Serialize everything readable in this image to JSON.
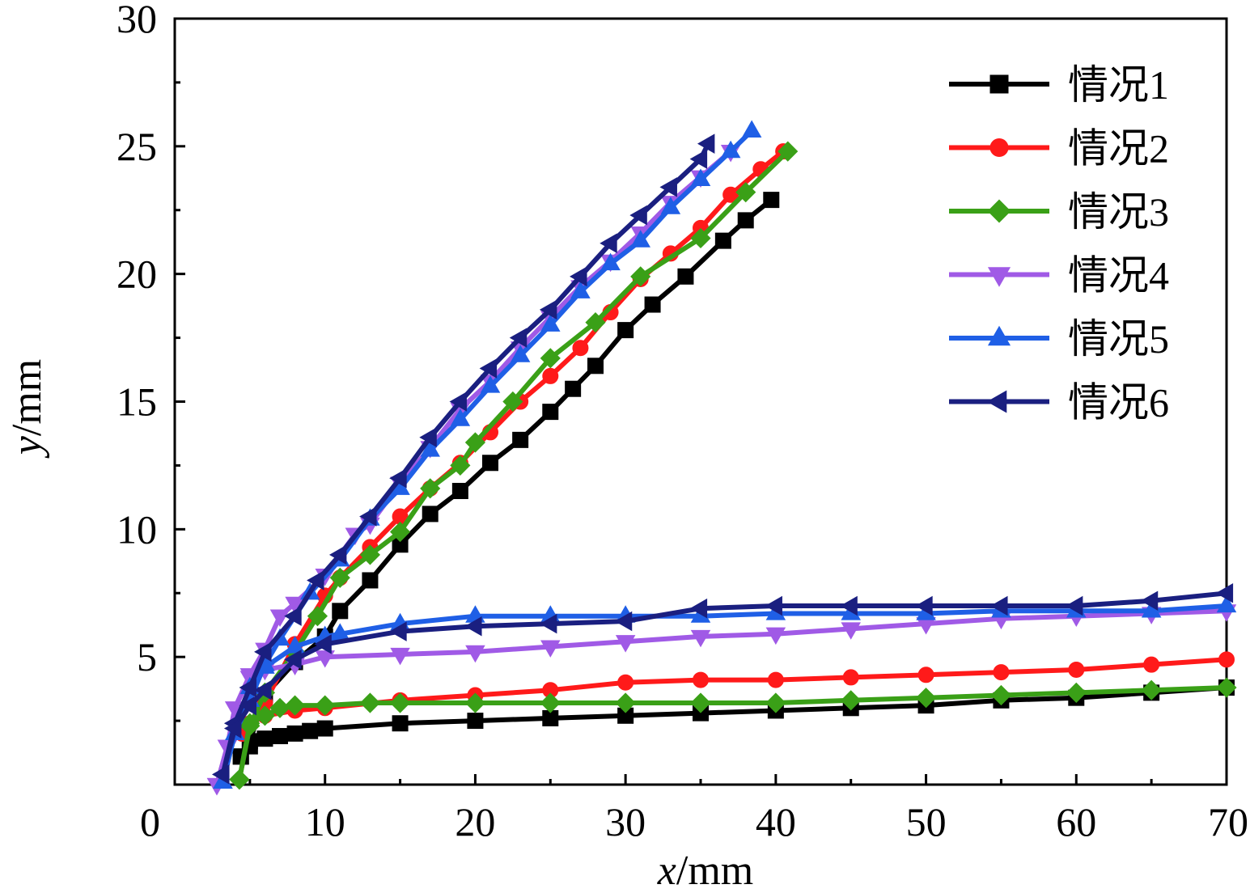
{
  "chart_data": {
    "type": "line",
    "title": "",
    "xlabel": {
      "var": "x",
      "unit": "/mm"
    },
    "ylabel": {
      "var": "y",
      "unit": "/mm"
    },
    "xlim": [
      0,
      70
    ],
    "ylim": [
      0,
      30
    ],
    "xticks": [
      0,
      10,
      20,
      30,
      40,
      50,
      60,
      70
    ],
    "yticks": [
      5,
      10,
      15,
      20,
      25,
      30
    ],
    "xtick_labels": [
      "0",
      "10",
      "20",
      "30",
      "40",
      "50",
      "60",
      "70"
    ],
    "ytick_labels": [
      "5",
      "10",
      "15",
      "20",
      "25",
      "30"
    ],
    "grid": false,
    "legend_position": "top-right",
    "series": [
      {
        "name": "情况1",
        "color": "#000000",
        "marker": "square",
        "upper": [
          [
            4.4,
            1.1
          ],
          [
            5,
            1.7
          ],
          [
            6,
            3.5
          ],
          [
            8,
            4.8
          ],
          [
            10,
            5.8
          ],
          [
            11,
            6.8
          ],
          [
            13,
            8.0
          ],
          [
            15,
            9.4
          ],
          [
            17,
            10.6
          ],
          [
            19,
            11.5
          ],
          [
            21,
            12.6
          ],
          [
            23,
            13.5
          ],
          [
            25,
            14.6
          ],
          [
            26.5,
            15.5
          ],
          [
            28,
            16.4
          ],
          [
            30,
            17.8
          ],
          [
            31.8,
            18.8
          ],
          [
            34,
            19.9
          ],
          [
            36.5,
            21.3
          ],
          [
            38,
            22.1
          ],
          [
            39.7,
            22.9
          ]
        ],
        "lower": [
          [
            4.4,
            1.1
          ],
          [
            5,
            1.5
          ],
          [
            6,
            1.8
          ],
          [
            7,
            1.9
          ],
          [
            8,
            2.0
          ],
          [
            9,
            2.1
          ],
          [
            10,
            2.2
          ],
          [
            15,
            2.4
          ],
          [
            20,
            2.5
          ],
          [
            25,
            2.6
          ],
          [
            30,
            2.7
          ],
          [
            35,
            2.8
          ],
          [
            40,
            2.9
          ],
          [
            45,
            3.0
          ],
          [
            50,
            3.1
          ],
          [
            55,
            3.3
          ],
          [
            60,
            3.4
          ],
          [
            65,
            3.6
          ],
          [
            70,
            3.8
          ]
        ]
      },
      {
        "name": "情况2",
        "color": "#ff1a1a",
        "marker": "circle",
        "upper": [
          [
            4.5,
            2.0
          ],
          [
            6,
            3.2
          ],
          [
            8,
            5.5
          ],
          [
            10,
            7.4
          ],
          [
            11,
            8.1
          ],
          [
            13,
            9.3
          ],
          [
            15,
            10.5
          ],
          [
            17,
            11.6
          ],
          [
            19,
            12.6
          ],
          [
            21,
            13.8
          ],
          [
            23,
            15.0
          ],
          [
            25,
            16.0
          ],
          [
            27,
            17.1
          ],
          [
            29,
            18.5
          ],
          [
            31,
            19.8
          ],
          [
            33,
            20.8
          ],
          [
            35,
            21.8
          ],
          [
            37,
            23.1
          ],
          [
            39,
            24.1
          ],
          [
            40.5,
            24.8
          ]
        ],
        "lower": [
          [
            4.5,
            2.0
          ],
          [
            5,
            2.4
          ],
          [
            6,
            2.7
          ],
          [
            8,
            2.9
          ],
          [
            10,
            3.0
          ],
          [
            15,
            3.3
          ],
          [
            20,
            3.5
          ],
          [
            25,
            3.7
          ],
          [
            30,
            4.0
          ],
          [
            35,
            4.1
          ],
          [
            40,
            4.1
          ],
          [
            45,
            4.2
          ],
          [
            50,
            4.3
          ],
          [
            55,
            4.4
          ],
          [
            60,
            4.5
          ],
          [
            65,
            4.7
          ],
          [
            70,
            4.9
          ]
        ]
      },
      {
        "name": "情况3",
        "color": "#3aa017",
        "marker": "diamond",
        "upper": [
          [
            4.3,
            0.2
          ],
          [
            5,
            2.3
          ],
          [
            6,
            3.6
          ],
          [
            8,
            5.2
          ],
          [
            9.5,
            6.6
          ],
          [
            11,
            8.1
          ],
          [
            13,
            9.0
          ],
          [
            15,
            9.9
          ],
          [
            17,
            11.6
          ],
          [
            19,
            12.5
          ],
          [
            20,
            13.4
          ],
          [
            22.5,
            15.0
          ],
          [
            25,
            16.7
          ],
          [
            28,
            18.1
          ],
          [
            31,
            19.9
          ],
          [
            35,
            21.4
          ],
          [
            38,
            23.2
          ],
          [
            40.8,
            24.8
          ]
        ],
        "lower": [
          [
            4.3,
            0.2
          ],
          [
            5,
            2.4
          ],
          [
            6,
            2.7
          ],
          [
            7,
            3.0
          ],
          [
            8,
            3.1
          ],
          [
            10,
            3.1
          ],
          [
            13,
            3.2
          ],
          [
            15,
            3.2
          ],
          [
            20,
            3.2
          ],
          [
            25,
            3.2
          ],
          [
            30,
            3.2
          ],
          [
            35,
            3.2
          ],
          [
            40,
            3.2
          ],
          [
            45,
            3.3
          ],
          [
            50,
            3.4
          ],
          [
            55,
            3.5
          ],
          [
            60,
            3.6
          ],
          [
            65,
            3.7
          ],
          [
            70,
            3.8
          ]
        ]
      },
      {
        "name": "情况4",
        "color": "#a05ae6",
        "marker": "triangle-down",
        "upper": [
          [
            2.8,
            0.0
          ],
          [
            3.5,
            1.5
          ],
          [
            4,
            3.0
          ],
          [
            5,
            4.3
          ],
          [
            6,
            5.3
          ],
          [
            7,
            6.6
          ],
          [
            8,
            7.1
          ],
          [
            10,
            8.2
          ],
          [
            12,
            9.8
          ],
          [
            13,
            10.2
          ],
          [
            15,
            11.8
          ],
          [
            17,
            13.2
          ],
          [
            19,
            14.7
          ],
          [
            21,
            15.8
          ],
          [
            23,
            17.1
          ],
          [
            25,
            18.3
          ],
          [
            27,
            19.5
          ],
          [
            29,
            20.5
          ],
          [
            31,
            21.6
          ],
          [
            33,
            22.8
          ],
          [
            35,
            23.8
          ],
          [
            37,
            24.8
          ]
        ],
        "lower": [
          [
            2.8,
            0.0
          ],
          [
            3.5,
            1.5
          ],
          [
            4,
            3.0
          ],
          [
            5,
            4.2
          ],
          [
            6,
            4.5
          ],
          [
            8,
            4.7
          ],
          [
            10,
            5.0
          ],
          [
            15,
            5.1
          ],
          [
            20,
            5.2
          ],
          [
            25,
            5.4
          ],
          [
            30,
            5.6
          ],
          [
            35,
            5.8
          ],
          [
            40,
            5.9
          ],
          [
            45,
            6.1
          ],
          [
            50,
            6.3
          ],
          [
            55,
            6.5
          ],
          [
            60,
            6.6
          ],
          [
            65,
            6.7
          ],
          [
            70,
            6.8
          ]
        ]
      },
      {
        "name": "情况5",
        "color": "#1f5fe6",
        "marker": "triangle-up",
        "upper": [
          [
            3.2,
            0.1
          ],
          [
            4,
            2.0
          ],
          [
            5,
            3.3
          ],
          [
            6,
            4.7
          ],
          [
            7,
            5.7
          ],
          [
            9,
            7.5
          ],
          [
            11,
            8.8
          ],
          [
            13,
            10.4
          ],
          [
            15,
            11.6
          ],
          [
            17,
            13.1
          ],
          [
            19,
            14.3
          ],
          [
            21,
            15.6
          ],
          [
            23,
            16.8
          ],
          [
            25,
            18.0
          ],
          [
            27,
            19.3
          ],
          [
            29,
            20.4
          ],
          [
            31,
            21.3
          ],
          [
            33,
            22.6
          ],
          [
            35,
            23.7
          ],
          [
            37,
            24.8
          ],
          [
            38.4,
            25.6
          ]
        ],
        "lower": [
          [
            3.2,
            0.1
          ],
          [
            4,
            2.0
          ],
          [
            5,
            3.8
          ],
          [
            6,
            4.6
          ],
          [
            8,
            5.4
          ],
          [
            10,
            5.8
          ],
          [
            11,
            5.9
          ],
          [
            15,
            6.3
          ],
          [
            20,
            6.6
          ],
          [
            25,
            6.6
          ],
          [
            30,
            6.6
          ],
          [
            35,
            6.6
          ],
          [
            40,
            6.7
          ],
          [
            45,
            6.7
          ],
          [
            50,
            6.7
          ],
          [
            55,
            6.8
          ],
          [
            60,
            6.8
          ],
          [
            65,
            6.8
          ],
          [
            70,
            7.0
          ]
        ]
      },
      {
        "name": "情况6",
        "color": "#1a1f80",
        "marker": "triangle-left",
        "upper": [
          [
            3.2,
            0.4
          ],
          [
            4,
            2.4
          ],
          [
            5,
            3.8
          ],
          [
            6,
            5.2
          ],
          [
            8,
            6.6
          ],
          [
            9.5,
            8.0
          ],
          [
            11,
            9.0
          ],
          [
            13,
            10.5
          ],
          [
            15,
            12.0
          ],
          [
            17,
            13.6
          ],
          [
            19,
            15.0
          ],
          [
            21,
            16.3
          ],
          [
            23,
            17.5
          ],
          [
            25,
            18.6
          ],
          [
            27,
            19.9
          ],
          [
            29,
            21.2
          ],
          [
            31,
            22.3
          ],
          [
            33,
            23.4
          ],
          [
            35,
            24.5
          ],
          [
            35.5,
            25.1
          ]
        ],
        "lower": [
          [
            3.2,
            0.4
          ],
          [
            4,
            2.2
          ],
          [
            5,
            3.1
          ],
          [
            6,
            3.7
          ],
          [
            8,
            4.9
          ],
          [
            10,
            5.5
          ],
          [
            15,
            6.0
          ],
          [
            20,
            6.2
          ],
          [
            25,
            6.3
          ],
          [
            30,
            6.4
          ],
          [
            35,
            6.9
          ],
          [
            40,
            7.0
          ],
          [
            45,
            7.0
          ],
          [
            50,
            7.0
          ],
          [
            55,
            7.0
          ],
          [
            60,
            7.0
          ],
          [
            65,
            7.2
          ],
          [
            70,
            7.5
          ]
        ]
      }
    ]
  }
}
